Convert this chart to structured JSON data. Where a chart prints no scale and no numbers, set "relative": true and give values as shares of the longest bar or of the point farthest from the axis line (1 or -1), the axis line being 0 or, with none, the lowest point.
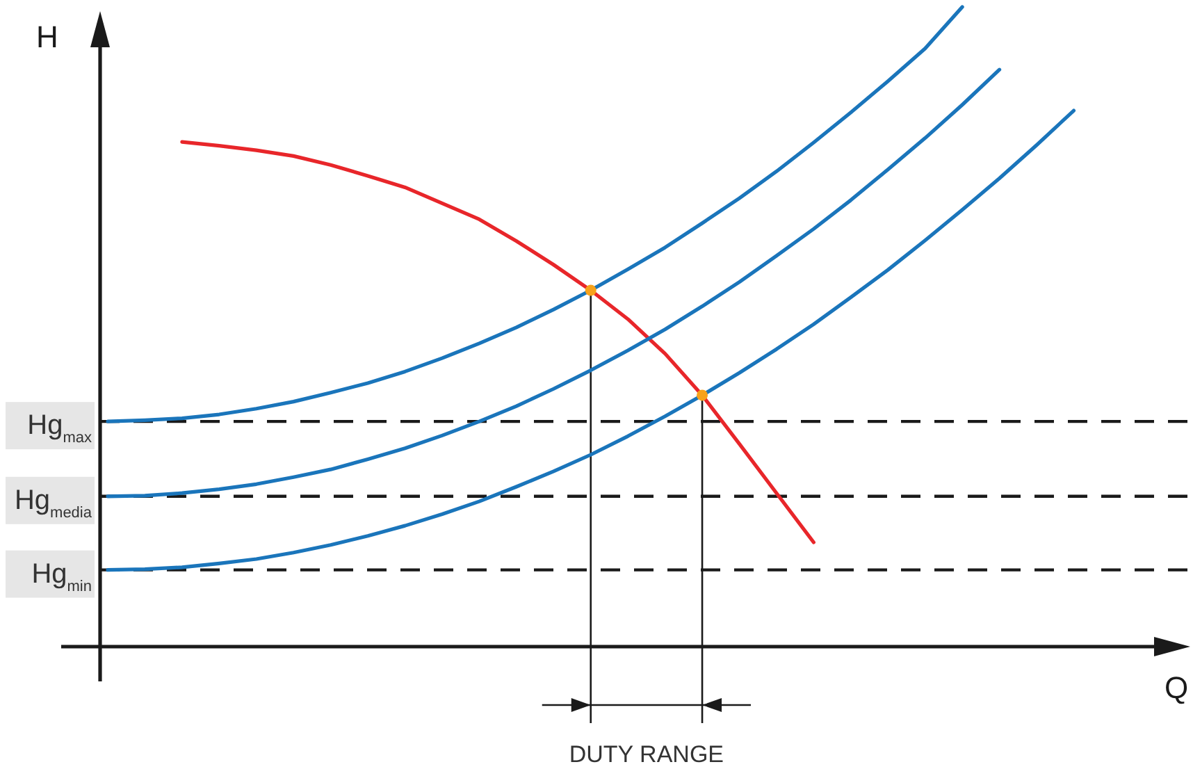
{
  "chart_data": {
    "type": "line",
    "relative": true,
    "xlabel": "Q",
    "ylabel": "H",
    "line_style": "solid",
    "marker": "none",
    "categories": [
      null,
      null,
      null,
      null,
      null,
      null,
      null,
      null,
      null,
      null,
      null,
      null,
      null,
      null,
      null,
      null,
      null,
      null,
      null,
      null,
      null,
      null,
      null,
      null,
      null,
      null,
      null
    ],
    "series": [
      {
        "color": "#e8262a",
        "values": [
          null,
          null,
          0.789,
          0.783,
          0.776,
          0.767,
          0.753,
          0.736,
          0.718,
          0.693,
          0.668,
          0.634,
          0.597,
          0.557,
          0.512,
          0.458,
          0.393,
          0.317,
          0.24,
          0.163,
          null,
          null,
          null,
          null,
          null,
          null,
          null
        ]
      },
      {
        "color": "#1a75bb",
        "values": [
          0.352,
          0.354,
          0.357,
          0.363,
          0.372,
          0.383,
          0.397,
          0.412,
          0.43,
          0.451,
          0.474,
          0.499,
          0.527,
          0.557,
          0.59,
          0.624,
          0.662,
          0.701,
          0.743,
          0.788,
          0.835,
          0.884,
          0.935,
          1.0,
          null,
          null,
          null
        ]
      },
      {
        "color": "#1a75bb",
        "values": [
          0.235,
          0.236,
          0.24,
          0.246,
          0.254,
          0.265,
          0.277,
          0.293,
          0.31,
          0.33,
          0.352,
          0.376,
          0.403,
          0.432,
          0.463,
          0.496,
          0.532,
          0.57,
          0.611,
          0.653,
          0.698,
          0.746,
          0.795,
          0.847,
          0.902,
          null,
          null
        ]
      },
      {
        "color": "#1a75bb",
        "values": [
          0.12,
          0.121,
          0.124,
          0.13,
          0.137,
          0.147,
          0.159,
          0.173,
          0.189,
          0.207,
          0.227,
          0.25,
          0.274,
          0.3,
          0.329,
          0.36,
          0.393,
          0.428,
          0.465,
          0.504,
          0.546,
          0.589,
          0.635,
          0.683,
          0.732,
          0.784,
          0.838
        ]
      }
    ],
    "ref_lines": [
      {
        "axis": "y",
        "value": 0.352,
        "label": "Hg$_{max}$",
        "line_style": "dashed",
        "color": "#1a1a1a"
      },
      {
        "axis": "y",
        "value": 0.235,
        "label": "Hg$_{media}$",
        "line_style": "dashed",
        "color": "#1a1a1a"
      },
      {
        "axis": "y",
        "value": 0.12,
        "label": "Hg$_{min}$",
        "line_style": "dashed",
        "color": "#1a1a1a"
      }
    ],
    "annotations": [
      "DUTY RANGE"
    ]
  }
}
